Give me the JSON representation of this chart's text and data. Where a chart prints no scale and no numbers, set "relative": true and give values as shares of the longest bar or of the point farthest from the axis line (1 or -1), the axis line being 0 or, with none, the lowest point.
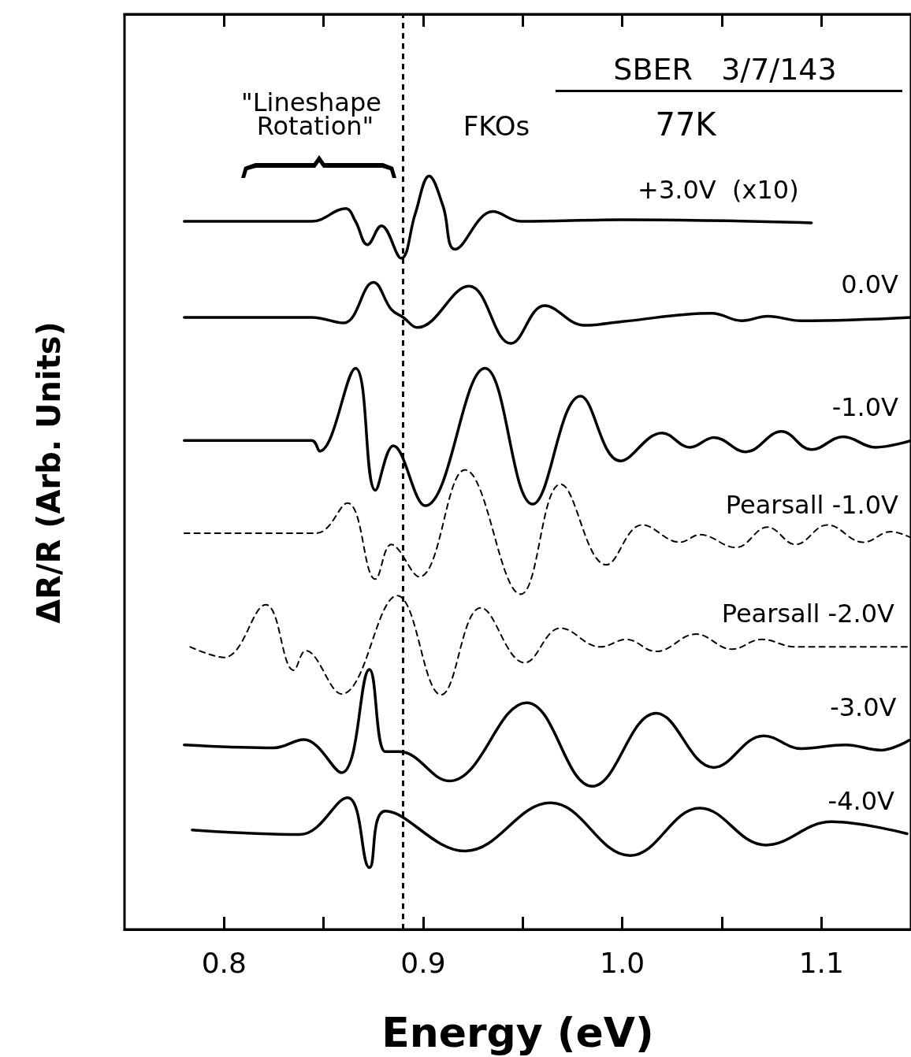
{
  "chart_data": {
    "type": "line",
    "relative": true,
    "xlabel": "Energy (eV)",
    "ylabel": "ΔR/R (Arb. Units)",
    "xlim": [
      0.75,
      1.145
    ],
    "xticks": [
      0.8,
      {
        "value": 0.85,
        "label": null
      },
      0.9,
      {
        "value": 0.95,
        "label": null
      },
      {
        "value": 1,
        "label": "1.0"
      },
      {
        "value": 1.05,
        "label": null
      },
      1.1
    ],
    "grid": false,
    "legend": false,
    "marker": "none",
    "annotations": [
      "SBER   3/7/143",
      "77K",
      "\"Lineshape Rotation\"",
      "FKOs"
    ],
    "ref_lines": [
      {
        "axis": "x",
        "value": 0.89,
        "line_style": "dashed",
        "color": "#000000"
      }
    ],
    "series": [
      {
        "name": "+3.0V  (x10)",
        "color": "#000000",
        "line_style": "solid",
        "x": [
          0.78,
          0.844,
          0.861,
          0.866,
          0.872,
          0.879,
          0.889,
          0.896,
          0.903,
          0.91,
          0.916,
          0.935,
          0.949,
          1.0,
          1.095
        ],
        "values": [
          0.94,
          0.94,
          0.957,
          0.94,
          0.909,
          0.934,
          0.891,
          0.95,
          1.0,
          0.96,
          0.903,
          0.953,
          0.94,
          0.942,
          0.938
        ]
      },
      {
        "name": "0.0V",
        "color": "#000000",
        "line_style": "solid",
        "x": [
          0.78,
          0.844,
          0.86,
          0.875,
          0.884,
          0.89,
          0.897,
          0.923,
          0.944,
          0.961,
          0.981,
          1.0,
          1.045,
          1.06,
          1.073,
          1.09,
          1.145
        ],
        "values": [
          0.8125,
          0.8125,
          0.805,
          0.859,
          0.823,
          0.8125,
          0.799,
          0.854,
          0.778,
          0.828,
          0.802,
          0.807,
          0.818,
          0.808,
          0.814,
          0.808,
          0.8125
        ]
      },
      {
        "name": "-1.0V",
        "color": "#000000",
        "line_style": "solid",
        "x": [
          0.78,
          0.844,
          0.848,
          0.866,
          0.876,
          0.885,
          0.901,
          0.931,
          0.955,
          0.979,
          0.999,
          1.02,
          1.034,
          1.046,
          1.062,
          1.08,
          1.095,
          1.111,
          1.127,
          1.145
        ],
        "values": [
          0.649,
          0.649,
          0.635,
          0.745,
          0.583,
          0.642,
          0.5625,
          0.745,
          0.5645,
          0.708,
          0.622,
          0.659,
          0.64,
          0.653,
          0.634,
          0.661,
          0.637,
          0.654,
          0.64,
          0.649
        ]
      },
      {
        "name": "Pearsall -1.0V",
        "color": "#000000",
        "line_style": "dashed",
        "x": [
          0.78,
          0.846,
          0.862,
          0.876,
          0.884,
          0.898,
          0.921,
          0.949,
          0.969,
          0.992,
          1.01,
          1.029,
          1.039,
          1.057,
          1.073,
          1.087,
          1.103,
          1.121,
          1.135,
          1.145
        ],
        "values": [
          0.526,
          0.526,
          0.566,
          0.465,
          0.511,
          0.468,
          0.61,
          0.445,
          0.591,
          0.484,
          0.537,
          0.514,
          0.524,
          0.507,
          0.534,
          0.511,
          0.537,
          0.514,
          0.528,
          0.52
        ]
      },
      {
        "name": "Pearsall -2.0V",
        "color": "#000000",
        "line_style": "dashed",
        "x": [
          0.783,
          0.8,
          0.821,
          0.835,
          0.841,
          0.859,
          0.887,
          0.909,
          0.929,
          0.951,
          0.969,
          0.989,
          1.002,
          1.017,
          1.037,
          1.055,
          1.07,
          1.087,
          1.143
        ],
        "values": [
          0.375,
          0.361,
          0.431,
          0.344,
          0.37,
          0.3125,
          0.443,
          0.3115,
          0.427,
          0.354,
          0.4,
          0.375,
          0.385,
          0.369,
          0.392,
          0.372,
          0.385,
          0.375,
          0.375
        ]
      },
      {
        "name": "-3.0V",
        "color": "#000000",
        "line_style": "solid",
        "x": [
          0.78,
          0.825,
          0.84,
          0.859,
          0.873,
          0.881,
          0.888,
          0.913,
          0.952,
          0.985,
          1.017,
          1.046,
          1.071,
          1.09,
          1.112,
          1.13,
          1.144
        ],
        "values": [
          0.245,
          0.241,
          0.252,
          0.208,
          0.345,
          0.236,
          0.236,
          0.197,
          0.301,
          0.19,
          0.287,
          0.215,
          0.257,
          0.24,
          0.245,
          0.238,
          0.251
        ]
      },
      {
        "name": "-4.0V",
        "color": "#000000",
        "line_style": "solid",
        "x": [
          0.784,
          0.838,
          0.862,
          0.873,
          0.881,
          0.921,
          0.964,
          1.004,
          1.039,
          1.072,
          1.105,
          1.143
        ],
        "values": [
          0.132,
          0.126,
          0.175,
          0.082,
          0.157,
          0.104,
          0.168,
          0.098,
          0.161,
          0.112,
          0.143,
          0.127
        ]
      }
    ]
  }
}
